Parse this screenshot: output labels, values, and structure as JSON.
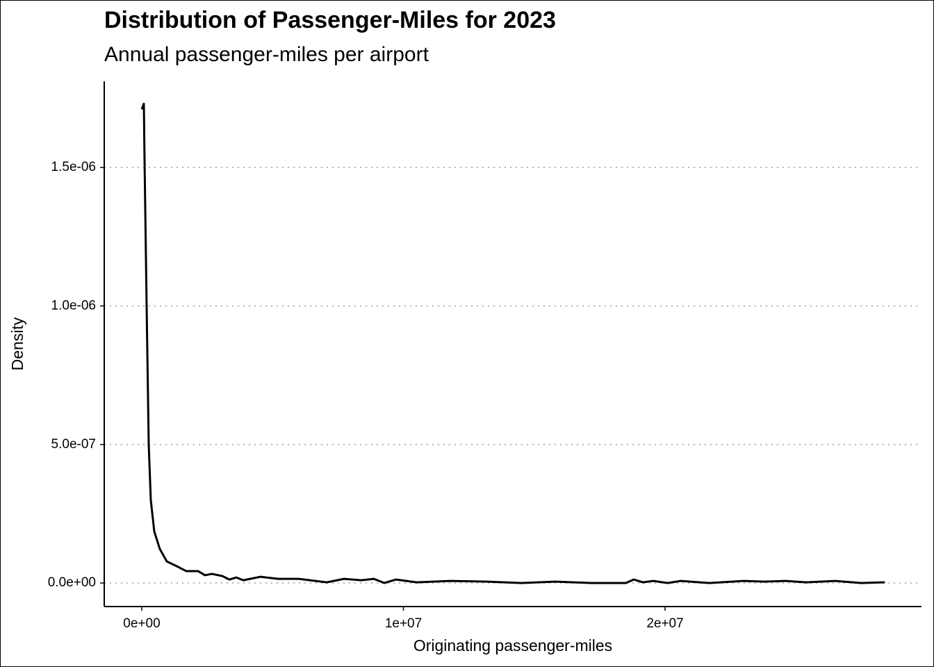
{
  "chart_data": {
    "type": "line",
    "title": "Distribution of Passenger-Miles for 2023",
    "subtitle": "Annual passenger-miles per airport",
    "x_label": "Originating passenger-miles",
    "y_label": "Density",
    "color": "#000000",
    "grid": true,
    "x": [
      0,
      80000,
      106000,
      186000,
      266000,
      345000,
      478000,
      690000,
      956000,
      1350000,
      1700000,
      2150000,
      2420000,
      2680000,
      3080000,
      3350000,
      3610000,
      3880000,
      4540000,
      5210000,
      6000000,
      7070000,
      7730000,
      8390000,
      8870000,
      9270000,
      9720000,
      10500000,
      11800000,
      13200000,
      14500000,
      15800000,
      17200000,
      18500000,
      18800000,
      19150000,
      19550000,
      20100000,
      20600000,
      21700000,
      23000000,
      23800000,
      24600000,
      25400000,
      26500000,
      27500000,
      28400000
    ],
    "values": [
      1.71e-06,
      1.73e-06,
      1.53e-06,
      1e-06,
      5e-07,
      3e-07,
      1.86e-07,
      1.23e-07,
      7.8e-08,
      6e-08,
      4.3e-08,
      4.3e-08,
      2.8e-08,
      3.3e-08,
      2.5e-08,
      1.25e-08,
      2e-08,
      1e-08,
      2.25e-08,
      1.5e-08,
      1.5e-08,
      2.5e-09,
      1.5e-08,
      1e-08,
      1.5e-08,
      0,
      1.25e-08,
      2.5e-09,
      7.5e-09,
      5e-09,
      0,
      5e-09,
      0,
      0,
      1.25e-08,
      2.5e-09,
      7.5e-09,
      0,
      7.5e-09,
      0,
      7.5e-09,
      5e-09,
      7.5e-09,
      2.5e-09,
      7.5e-09,
      0,
      2.5e-09
    ],
    "xlim": [
      -1434000,
      29800000
    ],
    "ylim": [
      -8.5e-08,
      1.811e-06
    ],
    "xticks": [
      {
        "value": 0,
        "label": "0e+00"
      },
      {
        "value": 10000000,
        "label": "1e+07"
      },
      {
        "value": 20000000,
        "label": "2e+07"
      }
    ],
    "yticks": [
      {
        "value": 0,
        "label": "0.0e+00"
      },
      {
        "value": 5e-07,
        "label": "5.0e-07"
      },
      {
        "value": 1e-06,
        "label": "1.0e-06"
      },
      {
        "value": 1.5e-06,
        "label": "1.5e-06"
      }
    ]
  }
}
